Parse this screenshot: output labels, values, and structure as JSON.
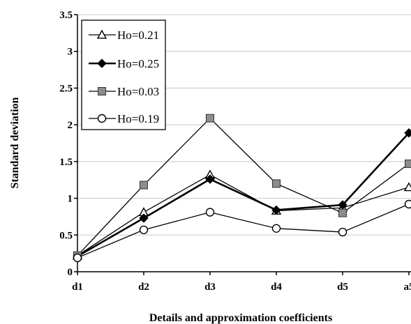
{
  "chart_data": {
    "type": "line",
    "title": "",
    "xlabel": "Details and approximation coefficients",
    "ylabel": "Standard deviation",
    "categories": [
      "d1",
      "d2",
      "d3",
      "d4",
      "d5",
      "a5"
    ],
    "ylim": [
      0,
      3.5
    ],
    "yticks": [
      {
        "value": 0,
        "label": "0"
      },
      {
        "value": 0.5,
        "label": "0.5"
      },
      {
        "value": 1,
        "label": "1"
      },
      {
        "value": 1.5,
        "label": "1.5"
      },
      {
        "value": 2,
        "label": "2"
      },
      {
        "value": 2.5,
        "label": "2.5"
      },
      {
        "value": 3,
        "label": "3"
      },
      {
        "value": 3.5,
        "label": "3.5"
      }
    ],
    "grid": true,
    "legend_position": "top-left",
    "series": [
      {
        "name": "Ho=0.21",
        "marker": "triangle-open",
        "line_color": "#000000",
        "line_width": 1.3,
        "values": [
          0.22,
          0.81,
          1.32,
          0.83,
          0.87,
          1.15
        ]
      },
      {
        "name": "Ho=0.25",
        "marker": "diamond-filled",
        "line_color": "#000000",
        "line_width": 2.6,
        "values": [
          0.21,
          0.73,
          1.26,
          0.84,
          0.91,
          1.89
        ]
      },
      {
        "name": "Ho=0.03",
        "marker": "square-gray",
        "line_color": "#000000",
        "line_width": 1.3,
        "values": [
          0.22,
          1.18,
          2.09,
          1.2,
          0.8,
          1.47
        ]
      },
      {
        "name": "Ho=0.19",
        "marker": "circle-open",
        "line_color": "#000000",
        "line_width": 1.3,
        "values": [
          0.19,
          0.57,
          0.81,
          0.59,
          0.54,
          0.92
        ]
      }
    ]
  }
}
